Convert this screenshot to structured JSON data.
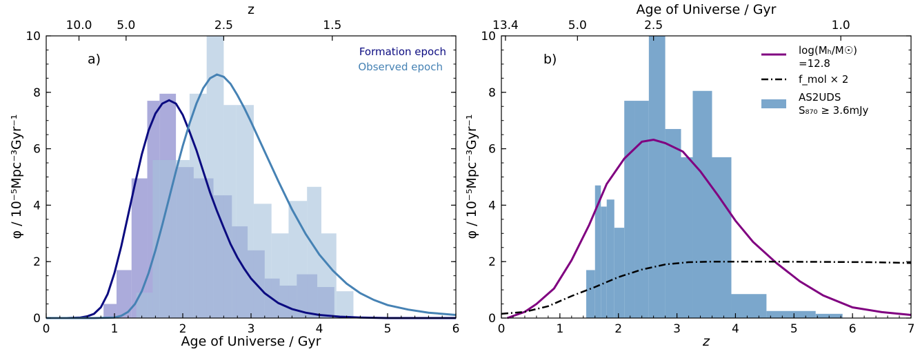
{
  "chart_data": [
    {
      "type": "bar",
      "panel_label": "a)",
      "xlabel": "Age of Universe / Gyr",
      "ylabel": "φ / 10⁻⁵Mpc⁻³Gyr⁻¹",
      "top_xlabel": "z",
      "xlim": [
        0,
        6
      ],
      "ylim": [
        0,
        10
      ],
      "xticks": [
        "0",
        "1",
        "2",
        "3",
        "4",
        "5",
        "6"
      ],
      "yticks": [
        "0",
        "2",
        "4",
        "6",
        "8",
        "10"
      ],
      "top_ticks": [
        {
          "label": "10.0",
          "at_age": 0.48
        },
        {
          "label": "5.0",
          "at_age": 1.17
        },
        {
          "label": "2.5",
          "at_age": 2.6
        },
        {
          "label": "1.5",
          "at_age": 4.19
        }
      ],
      "grid": false,
      "legend_position": "top-right",
      "colors": {
        "formation": "#0b0b80",
        "formation_fill": "#8f8fcf",
        "observed": "#4682b4",
        "observed_fill": "#a7c1dc"
      },
      "series": [
        {
          "name": "Formation epoch",
          "kind": "histogram",
          "bins": [
            {
              "x0": 0.84,
              "x1": 1.03,
              "y": 0.5
            },
            {
              "x0": 1.03,
              "x1": 1.25,
              "y": 1.7
            },
            {
              "x0": 1.25,
              "x1": 1.48,
              "y": 4.95
            },
            {
              "x0": 1.48,
              "x1": 1.66,
              "y": 7.7
            },
            {
              "x0": 1.66,
              "x1": 1.9,
              "y": 7.95
            },
            {
              "x0": 1.9,
              "x1": 2.16,
              "y": 5.35
            },
            {
              "x0": 2.16,
              "x1": 2.45,
              "y": 4.95
            },
            {
              "x0": 2.45,
              "x1": 2.72,
              "y": 4.35
            },
            {
              "x0": 2.72,
              "x1": 2.95,
              "y": 3.25
            },
            {
              "x0": 2.95,
              "x1": 3.2,
              "y": 2.4
            },
            {
              "x0": 3.2,
              "x1": 3.42,
              "y": 1.4
            },
            {
              "x0": 3.42,
              "x1": 3.67,
              "y": 1.15
            },
            {
              "x0": 3.67,
              "x1": 3.97,
              "y": 1.55
            },
            {
              "x0": 3.97,
              "x1": 4.22,
              "y": 1.1
            }
          ]
        },
        {
          "name": "Observed epoch",
          "kind": "histogram",
          "bins": [
            {
              "x0": 1.32,
              "x1": 1.56,
              "y": 0.9
            },
            {
              "x0": 1.56,
              "x1": 1.83,
              "y": 5.6
            },
            {
              "x0": 1.83,
              "x1": 2.1,
              "y": 5.6
            },
            {
              "x0": 2.1,
              "x1": 2.35,
              "y": 7.95
            },
            {
              "x0": 2.35,
              "x1": 2.6,
              "y": 10.0
            },
            {
              "x0": 2.6,
              "x1": 2.78,
              "y": 7.55
            },
            {
              "x0": 2.78,
              "x1": 3.04,
              "y": 7.55
            },
            {
              "x0": 3.04,
              "x1": 3.3,
              "y": 4.05
            },
            {
              "x0": 3.3,
              "x1": 3.55,
              "y": 3.0
            },
            {
              "x0": 3.55,
              "x1": 3.82,
              "y": 4.15
            },
            {
              "x0": 3.82,
              "x1": 4.03,
              "y": 4.65
            },
            {
              "x0": 4.03,
              "x1": 4.25,
              "y": 3.0
            },
            {
              "x0": 4.25,
              "x1": 4.5,
              "y": 0.95
            }
          ]
        },
        {
          "name": "Formation epoch",
          "kind": "line",
          "points": [
            [
              0.0,
              0.0
            ],
            [
              0.3,
              0.0
            ],
            [
              0.5,
              0.02
            ],
            [
              0.6,
              0.06
            ],
            [
              0.7,
              0.15
            ],
            [
              0.8,
              0.38
            ],
            [
              0.9,
              0.85
            ],
            [
              1.0,
              1.6
            ],
            [
              1.1,
              2.55
            ],
            [
              1.2,
              3.65
            ],
            [
              1.3,
              4.75
            ],
            [
              1.4,
              5.8
            ],
            [
              1.5,
              6.65
            ],
            [
              1.6,
              7.25
            ],
            [
              1.7,
              7.6
            ],
            [
              1.8,
              7.72
            ],
            [
              1.9,
              7.6
            ],
            [
              2.0,
              7.2
            ],
            [
              2.1,
              6.6
            ],
            [
              2.2,
              5.95
            ],
            [
              2.3,
              5.2
            ],
            [
              2.4,
              4.45
            ],
            [
              2.5,
              3.8
            ],
            [
              2.6,
              3.2
            ],
            [
              2.7,
              2.62
            ],
            [
              2.8,
              2.15
            ],
            [
              2.9,
              1.75
            ],
            [
              3.0,
              1.4
            ],
            [
              3.2,
              0.88
            ],
            [
              3.4,
              0.53
            ],
            [
              3.6,
              0.32
            ],
            [
              3.8,
              0.19
            ],
            [
              4.0,
              0.11
            ],
            [
              4.3,
              0.05
            ],
            [
              4.6,
              0.02
            ],
            [
              5.0,
              0.0
            ],
            [
              6.0,
              0.0
            ]
          ]
        },
        {
          "name": "Observed epoch",
          "kind": "line",
          "points": [
            [
              0.0,
              0.0
            ],
            [
              0.7,
              0.0
            ],
            [
              1.0,
              0.02
            ],
            [
              1.1,
              0.08
            ],
            [
              1.2,
              0.22
            ],
            [
              1.3,
              0.5
            ],
            [
              1.4,
              0.95
            ],
            [
              1.5,
              1.6
            ],
            [
              1.6,
              2.4
            ],
            [
              1.7,
              3.3
            ],
            [
              1.8,
              4.25
            ],
            [
              1.9,
              5.2
            ],
            [
              2.0,
              6.1
            ],
            [
              2.1,
              6.9
            ],
            [
              2.2,
              7.6
            ],
            [
              2.3,
              8.15
            ],
            [
              2.4,
              8.5
            ],
            [
              2.5,
              8.63
            ],
            [
              2.6,
              8.55
            ],
            [
              2.7,
              8.3
            ],
            [
              2.8,
              7.9
            ],
            [
              2.9,
              7.45
            ],
            [
              3.0,
              6.95
            ],
            [
              3.2,
              5.9
            ],
            [
              3.4,
              4.85
            ],
            [
              3.6,
              3.85
            ],
            [
              3.8,
              2.98
            ],
            [
              4.0,
              2.25
            ],
            [
              4.2,
              1.68
            ],
            [
              4.4,
              1.22
            ],
            [
              4.6,
              0.88
            ],
            [
              4.8,
              0.64
            ],
            [
              5.0,
              0.46
            ],
            [
              5.3,
              0.3
            ],
            [
              5.6,
              0.19
            ],
            [
              6.0,
              0.11
            ]
          ]
        }
      ]
    },
    {
      "type": "bar",
      "panel_label": "b)",
      "xlabel": "z",
      "ylabel": "φ / 10⁻⁵Mpc⁻³Gyr⁻¹",
      "top_xlabel": "Age of Universe / Gyr",
      "xlim": [
        0,
        7
      ],
      "ylim": [
        0,
        10
      ],
      "xticks": [
        "0",
        "1",
        "2",
        "3",
        "4",
        "5",
        "6",
        "7"
      ],
      "yticks": [
        "0",
        "2",
        "4",
        "6",
        "8",
        "10"
      ],
      "top_ticks": [
        {
          "label": "13.4",
          "at_z": 0.07
        },
        {
          "label": "5.0",
          "at_z": 1.3
        },
        {
          "label": "2.5",
          "at_z": 2.6
        },
        {
          "label": "1.0",
          "at_z": 5.8
        }
      ],
      "grid": false,
      "legend_position": "top-right",
      "colors": {
        "halo": "#800080",
        "fmol": "#000000",
        "hist": "#7ba7cc"
      },
      "series": [
        {
          "name": "AS2UDS",
          "name_line2": "S₈₇₀ ≥ 3.6mJy",
          "kind": "histogram",
          "bins": [
            {
              "x0": 1.45,
              "x1": 1.6,
              "y": 1.7
            },
            {
              "x0": 1.6,
              "x1": 1.7,
              "y": 4.7
            },
            {
              "x0": 1.7,
              "x1": 1.8,
              "y": 3.95
            },
            {
              "x0": 1.8,
              "x1": 1.93,
              "y": 4.2
            },
            {
              "x0": 1.93,
              "x1": 2.1,
              "y": 3.2
            },
            {
              "x0": 2.1,
              "x1": 2.28,
              "y": 7.7
            },
            {
              "x0": 2.28,
              "x1": 2.52,
              "y": 7.7
            },
            {
              "x0": 2.52,
              "x1": 2.8,
              "y": 10.0
            },
            {
              "x0": 2.8,
              "x1": 3.07,
              "y": 6.7
            },
            {
              "x0": 3.07,
              "x1": 3.27,
              "y": 5.7
            },
            {
              "x0": 3.27,
              "x1": 3.6,
              "y": 8.05
            },
            {
              "x0": 3.6,
              "x1": 3.93,
              "y": 5.7
            },
            {
              "x0": 3.93,
              "x1": 4.53,
              "y": 0.85
            },
            {
              "x0": 4.53,
              "x1": 5.37,
              "y": 0.25
            },
            {
              "x0": 5.37,
              "x1": 5.83,
              "y": 0.15
            }
          ]
        },
        {
          "name": "log(Mₕ/M☉)",
          "name_line2": "=12.8",
          "kind": "line",
          "points": [
            [
              0.1,
              0.0
            ],
            [
              0.4,
              0.22
            ],
            [
              0.6,
              0.5
            ],
            [
              0.9,
              1.05
            ],
            [
              1.2,
              2.05
            ],
            [
              1.5,
              3.3
            ],
            [
              1.8,
              4.75
            ],
            [
              2.1,
              5.65
            ],
            [
              2.4,
              6.25
            ],
            [
              2.6,
              6.32
            ],
            [
              2.8,
              6.2
            ],
            [
              3.1,
              5.9
            ],
            [
              3.4,
              5.2
            ],
            [
              3.7,
              4.35
            ],
            [
              4.0,
              3.45
            ],
            [
              4.3,
              2.7
            ],
            [
              4.7,
              1.95
            ],
            [
              5.1,
              1.3
            ],
            [
              5.5,
              0.8
            ],
            [
              6.0,
              0.38
            ],
            [
              6.5,
              0.21
            ],
            [
              7.0,
              0.11
            ]
          ]
        },
        {
          "name": "f_mol × 2",
          "kind": "line",
          "points": [
            [
              0.0,
              0.15
            ],
            [
              0.4,
              0.22
            ],
            [
              0.8,
              0.42
            ],
            [
              1.2,
              0.78
            ],
            [
              1.6,
              1.1
            ],
            [
              2.0,
              1.45
            ],
            [
              2.4,
              1.72
            ],
            [
              2.8,
              1.9
            ],
            [
              3.2,
              1.98
            ],
            [
              3.6,
              2.0
            ],
            [
              4.5,
              2.0
            ],
            [
              5.5,
              1.99
            ],
            [
              6.3,
              1.98
            ],
            [
              7.0,
              1.95
            ]
          ]
        }
      ]
    }
  ]
}
